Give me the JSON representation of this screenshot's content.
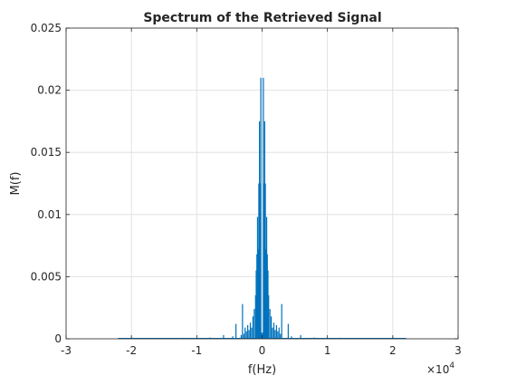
{
  "chart_data": {
    "type": "line",
    "title": "Spectrum of the Retrieved Signal",
    "xlabel": "f(Hz)",
    "ylabel": "M(f)",
    "x_exponent_label": "×10",
    "x_exponent_power": "4",
    "xlim": [
      -30000,
      30000
    ],
    "ylim": [
      0,
      0.025
    ],
    "xticks": [
      -30000,
      -20000,
      -10000,
      0,
      10000,
      20000,
      30000
    ],
    "xtick_labels": [
      "-3",
      "-2",
      "-1",
      "0",
      "1",
      "2",
      "3"
    ],
    "yticks": [
      0,
      0.005,
      0.01,
      0.015,
      0.02,
      0.025
    ],
    "ytick_labels": [
      "0",
      "0.005",
      "0.01",
      "0.015",
      "0.02",
      "0.025"
    ],
    "grid": true,
    "line_color": "#0072bd",
    "series": [
      {
        "x": [
          -22000,
          -20000,
          -16000,
          -12000,
          -8000,
          -6000,
          -5900,
          -5800,
          -4500,
          -4100,
          -4000,
          -3900,
          -3200,
          -3000,
          -2800,
          -2600,
          -2400,
          -2200,
          -2000,
          -1800,
          -1600,
          -1400,
          -1200,
          -1000,
          -900,
          -800,
          -700,
          -600,
          -500,
          -400,
          -300,
          -200,
          -100,
          0,
          100,
          200,
          300,
          400,
          500,
          600,
          700,
          800,
          900,
          1000,
          1200,
          1400,
          1600,
          1800,
          2000,
          2200,
          2400,
          2600,
          2800,
          3000,
          3900,
          4000,
          4100,
          4500,
          5800,
          5900,
          6000,
          8000,
          12000,
          16000,
          20000,
          22000
        ],
        "y": [
          5e-05,
          0.0001,
          5e-05,
          8e-05,
          0.0001,
          5e-05,
          0.0003,
          5e-05,
          0.0002,
          5e-05,
          0.0012,
          5e-05,
          0.0003,
          0.0028,
          0.0004,
          0.0009,
          0.0006,
          0.0011,
          0.0007,
          0.0013,
          0.0009,
          0.0018,
          0.0024,
          0.0035,
          0.0055,
          0.0068,
          0.0098,
          0.0072,
          0.0125,
          0.0175,
          0.0125,
          0.021,
          0.0005,
          0.0003,
          0.0005,
          0.021,
          0.0125,
          0.0175,
          0.0125,
          0.0072,
          0.0098,
          0.0068,
          0.0055,
          0.0035,
          0.0024,
          0.0018,
          0.0009,
          0.0013,
          0.0007,
          0.0011,
          0.0006,
          0.0009,
          0.0004,
          0.0028,
          5e-05,
          0.0012,
          5e-05,
          0.0002,
          5e-05,
          0.0003,
          5e-05,
          0.0001,
          8e-05,
          5e-05,
          0.0001,
          5e-05
        ]
      }
    ]
  }
}
